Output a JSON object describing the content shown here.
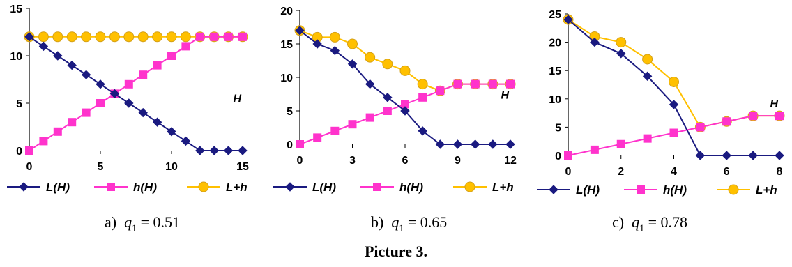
{
  "figure_title": "Picture 3.",
  "legend_labels": [
    "L(H)",
    "h(H)",
    "L+h"
  ],
  "colors": {
    "L": "#1a1a80",
    "h": "#ff33cc",
    "Lh": "#ffc000",
    "Lh_edge": "#d4a017"
  },
  "captions": [
    {
      "prefix": "a)",
      "variable": "q",
      "subscript": "1",
      "value": "= 0.51"
    },
    {
      "prefix": "b)",
      "variable": "q",
      "subscript": "1",
      "value": "= 0.65"
    },
    {
      "prefix": "c)",
      "variable": "q",
      "subscript": "1",
      "value": "= 0.78"
    }
  ],
  "chart_data": [
    {
      "type": "line",
      "xlabel": "H",
      "xlim": [
        0,
        15
      ],
      "xticks": [
        0,
        5,
        10,
        15
      ],
      "ylim": [
        0,
        15
      ],
      "yticks": [
        0,
        5,
        10,
        15
      ],
      "x": [
        0,
        1,
        2,
        3,
        4,
        5,
        6,
        7,
        8,
        9,
        10,
        11,
        12,
        13,
        14,
        15
      ],
      "series": [
        {
          "name": "L(H)",
          "marker": "diamond",
          "values": [
            12,
            11,
            10,
            9,
            8,
            7,
            6,
            5,
            4,
            3,
            2,
            1,
            0,
            0,
            0,
            0
          ]
        },
        {
          "name": "h(H)",
          "marker": "square",
          "values": [
            0,
            1,
            2,
            3,
            4,
            5,
            6,
            7,
            8,
            9,
            10,
            11,
            12,
            12,
            12,
            12
          ]
        },
        {
          "name": "L+h",
          "marker": "circle",
          "values": [
            12,
            12,
            12,
            12,
            12,
            12,
            12,
            12,
            12,
            12,
            12,
            12,
            12,
            12,
            12,
            12
          ]
        }
      ],
      "legend": "bottom"
    },
    {
      "type": "line",
      "xlabel": "H",
      "xlim": [
        0,
        12
      ],
      "xticks": [
        0,
        3,
        6,
        9,
        12
      ],
      "ylim": [
        0,
        20
      ],
      "yticks": [
        0,
        5,
        10,
        15,
        20
      ],
      "x": [
        0,
        1,
        2,
        3,
        4,
        5,
        6,
        7,
        8,
        9,
        10,
        11,
        12
      ],
      "series": [
        {
          "name": "L(H)",
          "marker": "diamond",
          "values": [
            17,
            15,
            14,
            12,
            9,
            7,
            5,
            2,
            0,
            0,
            0,
            0,
            0
          ]
        },
        {
          "name": "h(H)",
          "marker": "square",
          "values": [
            0,
            1,
            2,
            3,
            4,
            5,
            6,
            7,
            8,
            9,
            9,
            9,
            9
          ]
        },
        {
          "name": "L+h",
          "marker": "circle",
          "values": [
            17,
            16,
            16,
            15,
            13,
            12,
            11,
            9,
            8,
            9,
            9,
            9,
            9
          ]
        }
      ],
      "legend": "bottom"
    },
    {
      "type": "line",
      "xlabel": "H",
      "xlim": [
        0,
        8
      ],
      "xticks": [
        0,
        2,
        4,
        6,
        8
      ],
      "ylim": [
        0,
        25
      ],
      "yticks": [
        0,
        5,
        10,
        15,
        20,
        25
      ],
      "x": [
        0,
        1,
        2,
        3,
        4,
        5,
        6,
        7,
        8
      ],
      "series": [
        {
          "name": "L(H)",
          "marker": "diamond",
          "values": [
            24,
            20,
            18,
            14,
            9,
            0,
            0,
            0,
            0
          ]
        },
        {
          "name": "h(H)",
          "marker": "square",
          "values": [
            0,
            1,
            2,
            3,
            4,
            5,
            6,
            7,
            7
          ]
        },
        {
          "name": "L+h",
          "marker": "circle",
          "values": [
            24,
            21,
            20,
            17,
            13,
            5,
            6,
            7,
            7
          ]
        }
      ],
      "legend": "bottom"
    }
  ]
}
